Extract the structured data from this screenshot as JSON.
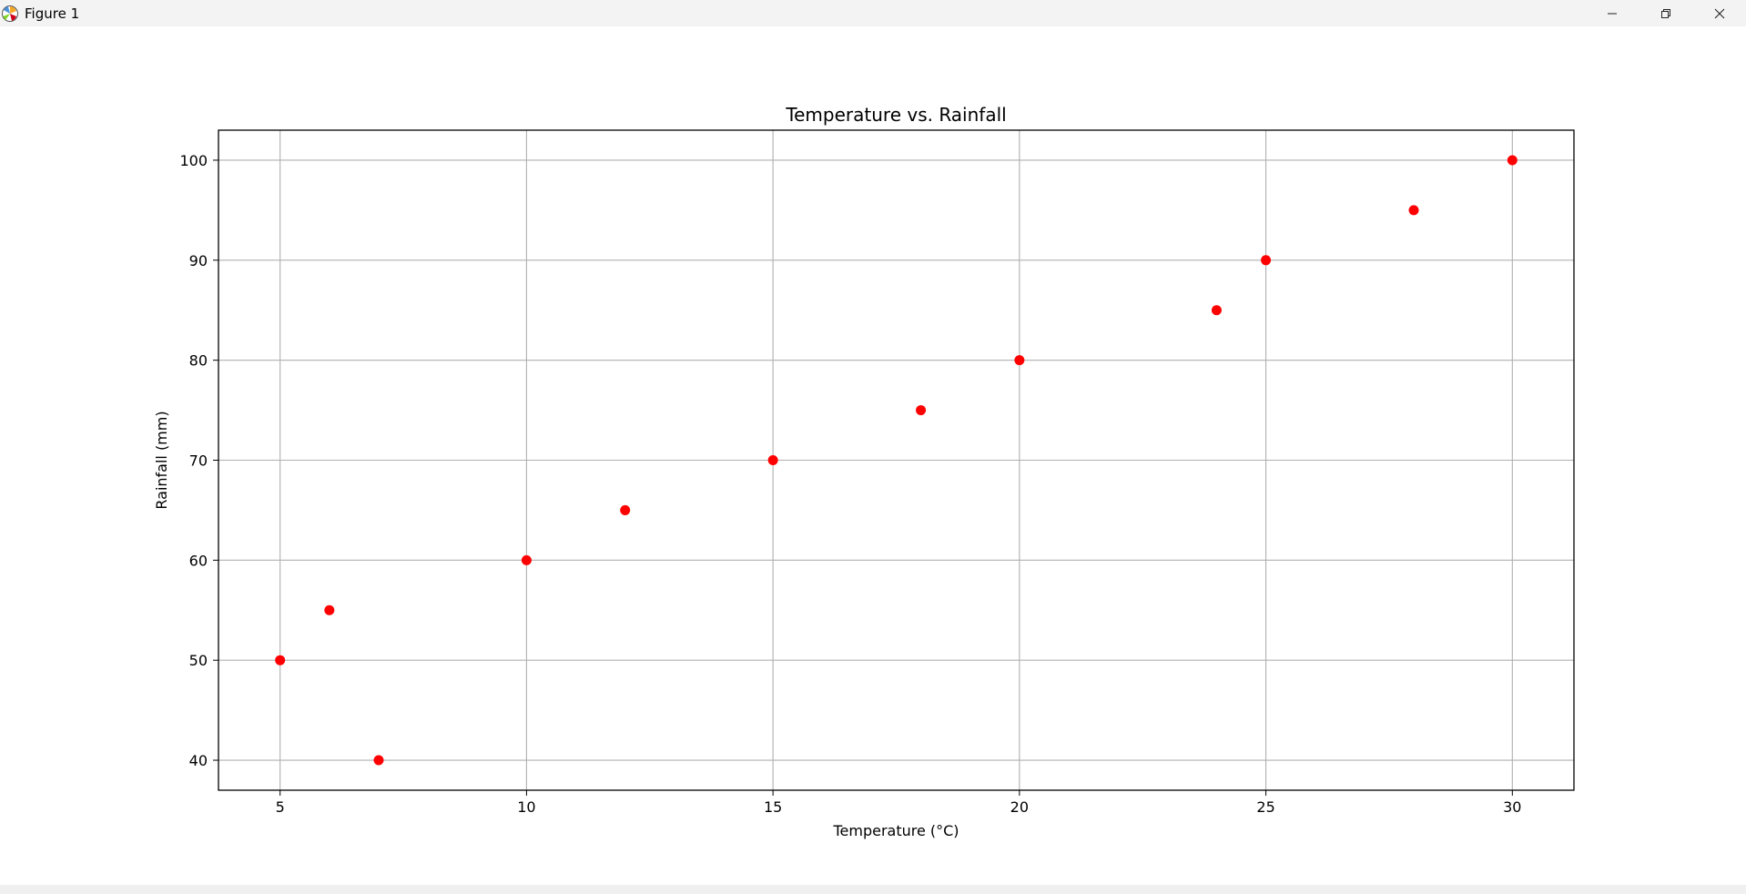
{
  "window": {
    "title": "Figure 1",
    "icon": "matplotlib-figure-icon",
    "controls": [
      "minimize-icon",
      "restore-icon",
      "close-icon"
    ]
  },
  "chart_data": {
    "type": "scatter",
    "title": "Temperature vs. Rainfall",
    "xlabel": "Temperature (°C)",
    "ylabel": "Rainfall (mm)",
    "x": [
      5,
      6,
      7,
      10,
      12,
      15,
      18,
      20,
      24,
      25,
      28,
      30
    ],
    "y": [
      50,
      55,
      40,
      60,
      65,
      70,
      75,
      80,
      85,
      90,
      95,
      100
    ],
    "xlim": [
      3.75,
      31.25
    ],
    "ylim": [
      37,
      103
    ],
    "xticks": [
      5,
      10,
      15,
      20,
      25,
      30
    ],
    "yticks": [
      40,
      50,
      60,
      70,
      80,
      90,
      100
    ],
    "grid": true,
    "marker_color": "#ff0000",
    "grid_color": "#b0b0b0"
  }
}
